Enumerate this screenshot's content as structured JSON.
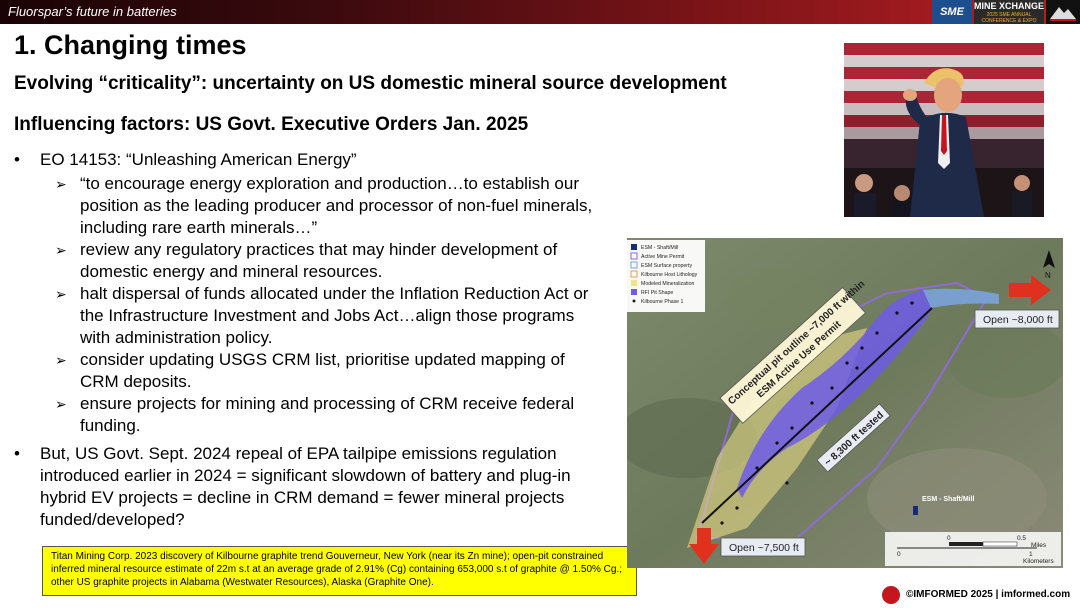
{
  "header": {
    "title": "Fluorspar’s future in batteries",
    "logo_sme": "SME",
    "logo_mx_main": "MINE XCHANGE",
    "logo_mx_sub": "2025 SME ANNUAL CONFERENCE & EXPO"
  },
  "slide": {
    "title": "1. Changing times",
    "subtitle1": "Evolving “criticality”: uncertainty on US domestic mineral source development",
    "subtitle2": "Influencing factors: US Govt. Executive Orders Jan. 2025",
    "bullet_symbol": "•",
    "arrow_symbol": "➢",
    "bullet1": "EO 14153: “Unleashing American Energy”",
    "subitems": [
      "“to encourage energy exploration and production…to establish our position as the leading producer and processor of non-fuel minerals, including rare earth minerals…”",
      "review any regulatory practices that may hinder development of domestic energy and mineral resources.",
      "halt dispersal of funds allocated under the Inflation Reduction Act or the Infrastructure Investment and Jobs Act…align those programs with administration policy.",
      "consider updating USGS CRM list, prioritise updated mapping of CRM deposits.",
      "ensure projects for mining and processing of CRM receive federal funding."
    ],
    "bullet2": "But, US Govt. Sept. 2024 repeal of EPA tailpipe emissions regulation introduced earlier in 2024 = significant slowdown of battery and plug-in hybrid EV projects = decline in CRM demand = fewer mineral projects funded/developed?",
    "note": "Titan Mining Corp. 2023 discovery of Kilbourne graphite trend Gouverneur, New York (near its Zn mine); open-pit constrained inferred mineral resource estimate of 22m s.t at an average grade of 2.91% (Cg) containing 653,000 s.t of graphite @ 1.50% Cg.; other US graphite projects in Alabama (Westwater Resources), Alaska (Graphite One)."
  },
  "map": {
    "legend": [
      "ESM - Shaft/Mill",
      "Active Mine Permit",
      "ESM Surface property",
      "Kilbourne Host Lithology",
      "Modeled Mineralization",
      "RFI Pit Shape",
      "Kilbourne Phase 1"
    ],
    "legend_colors": [
      "#1a2a7a",
      "#8e6bd6",
      "#7aa3d8",
      "#e0a24a",
      "#f2e48a",
      "#6f5ce8",
      "#222222"
    ],
    "pit_label_line1": "Conceptual pit outline ~7,000 ft within",
    "pit_label_line2": "ESM Active Use Permit",
    "tested_label": "~ 8,300 ft tested",
    "open_ne": "Open ~8,000 ft",
    "open_sw": "Open ~7,500 ft",
    "esm_label": "ESM - Shaft/Mill",
    "scale_miles": "Miles",
    "scale_km": "Kilometers",
    "scale_0": "0",
    "scale_05": "0.5",
    "scale_1": "1",
    "north": "N"
  },
  "footer": {
    "text": "©IMFORMED 2025  |  imformed.com"
  }
}
